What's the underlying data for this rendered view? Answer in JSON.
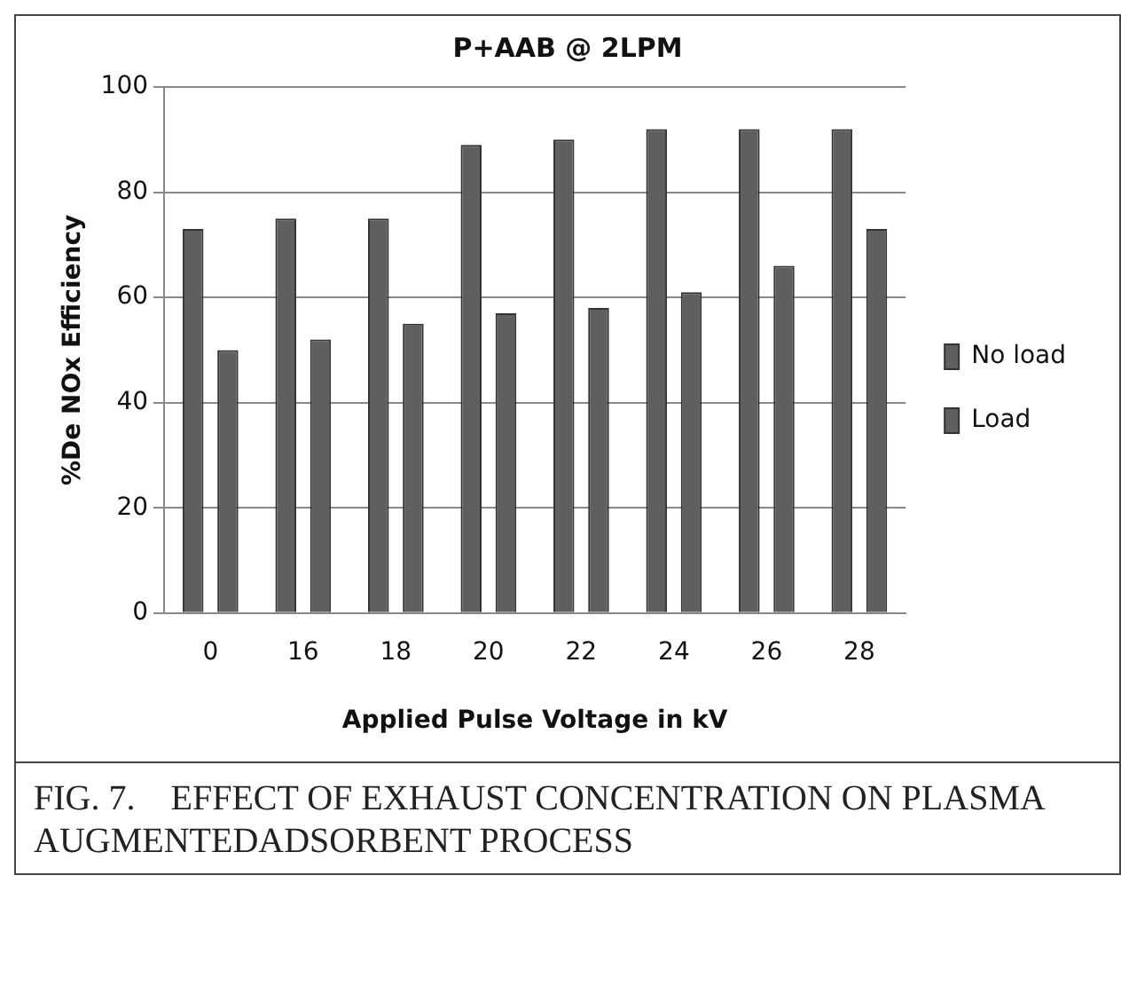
{
  "chart_data": {
    "type": "bar",
    "title": "P+AAB @ 2LPM",
    "xlabel": "Applied Pulse Voltage in kV",
    "ylabel": "%De NOx Efficiency",
    "categories": [
      "0",
      "16",
      "18",
      "20",
      "22",
      "24",
      "26",
      "28"
    ],
    "series": [
      {
        "name": "No load",
        "color": "#5f5f5f",
        "values": [
          73,
          75,
          75,
          89,
          90,
          92,
          92,
          92
        ]
      },
      {
        "name": "Load",
        "color": "#5f5f5f",
        "values": [
          50,
          52,
          55,
          57,
          58,
          61,
          66,
          73
        ]
      }
    ],
    "ylim": [
      0,
      100
    ],
    "yticks": [
      0,
      20,
      40,
      60,
      80,
      100
    ],
    "grid": "y",
    "legend": "right",
    "annotations": [
      "FIG. 7.    EFFECT OF EXHAUST CONCENTRATION ON PLASMA AUGMENTEDADSORBENT PROCESS"
    ]
  }
}
